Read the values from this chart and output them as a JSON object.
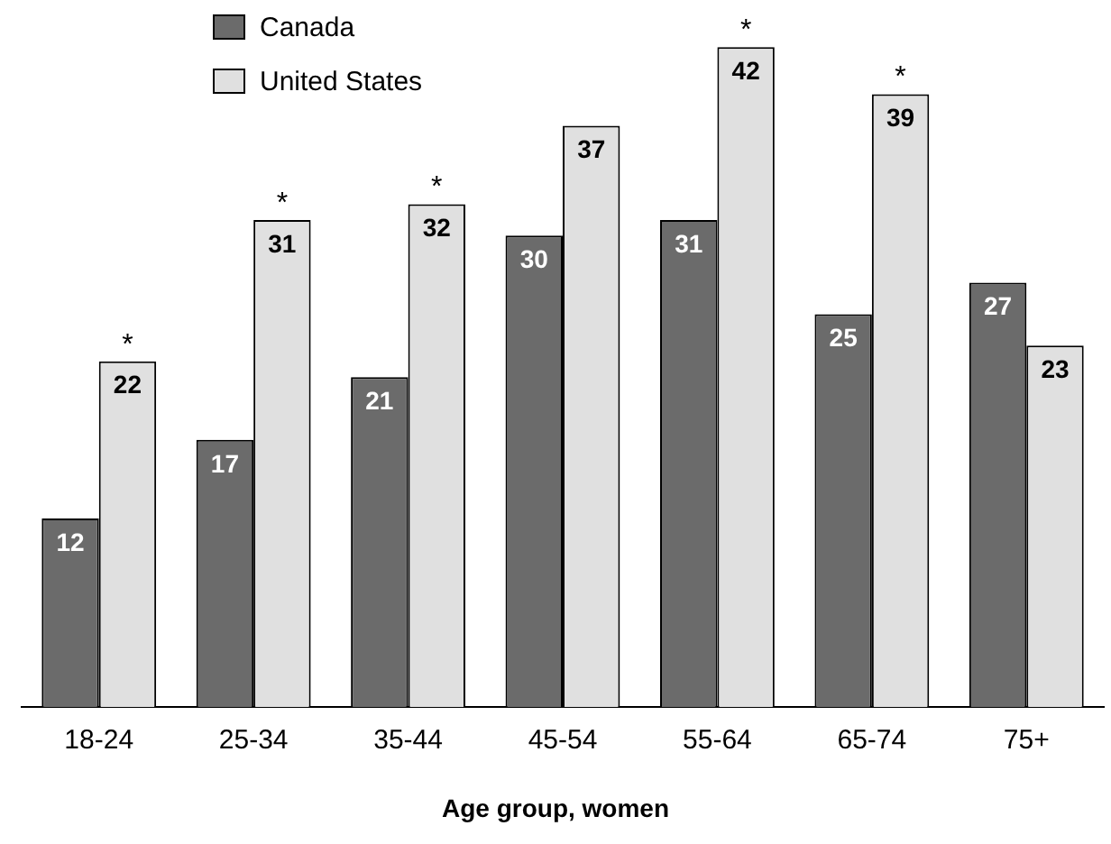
{
  "chart_data": {
    "type": "bar",
    "xlabel": "Age group, women",
    "categories": [
      "18-24",
      "25-34",
      "35-44",
      "45-54",
      "55-64",
      "65-74",
      "75+"
    ],
    "series": [
      {
        "name": "Canada",
        "color": "#6b6b6b",
        "values": [
          12,
          17,
          21,
          30,
          31,
          25,
          27
        ]
      },
      {
        "name": "United States",
        "color": "#e0e0e0",
        "values": [
          22,
          31,
          32,
          37,
          42,
          39,
          23
        ]
      }
    ],
    "tick_labels": "x",
    "grid": false,
    "legend": "top left",
    "data_labels": true,
    "annotations": [
      {
        "text": "*",
        "x": "18-24",
        "y": 22
      },
      {
        "text": "*",
        "x": "25-34",
        "y": 31
      },
      {
        "text": "*",
        "x": "35-44",
        "y": 32
      },
      {
        "text": "*",
        "x": "55-64",
        "y": 42
      },
      {
        "text": "*",
        "x": "65-74",
        "y": 39
      }
    ]
  }
}
